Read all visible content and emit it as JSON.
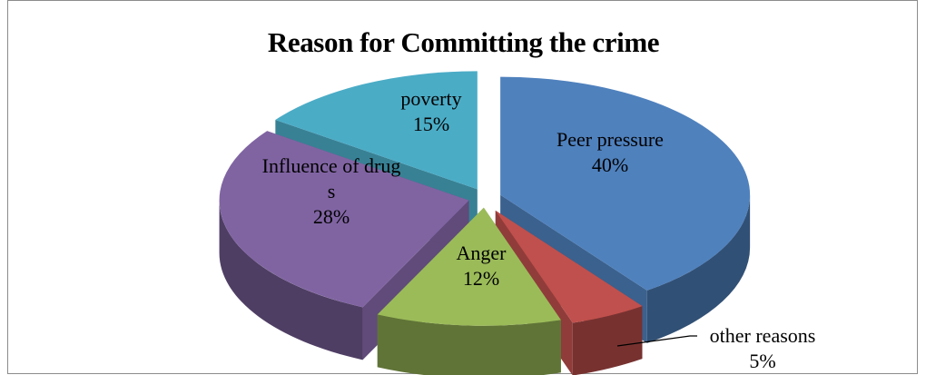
{
  "chart_data": {
    "type": "pie",
    "title": "Reason for Committing  the crime",
    "slices": [
      {
        "name": "Peer pressure",
        "label_lines": [
          "Peer pressure"
        ],
        "value": 40,
        "value_label": "40%",
        "color": "#4f81bd"
      },
      {
        "name": "other reasons",
        "label_lines": [
          "other reasons"
        ],
        "value": 5,
        "value_label": "5%",
        "color": "#c0504d"
      },
      {
        "name": "Anger",
        "label_lines": [
          "Anger"
        ],
        "value": 12,
        "value_label": "12%",
        "color": "#9bbb59"
      },
      {
        "name": "Influence of drugs",
        "label_lines": [
          "Influence of drug",
          "s"
        ],
        "value": 28,
        "value_label": "28%",
        "color": "#8064a2"
      },
      {
        "name": "poverty",
        "label_lines": [
          "poverty"
        ],
        "value": 15,
        "value_label": "15%",
        "color": "#4bacc6"
      }
    ]
  }
}
